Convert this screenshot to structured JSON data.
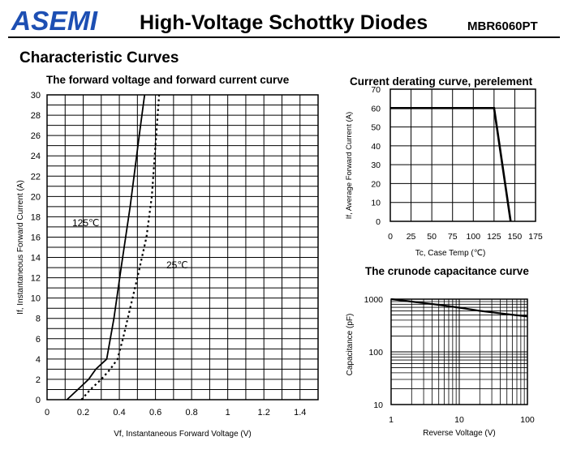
{
  "header": {
    "brand": "ASEMI",
    "title": "High-Voltage Schottky Diodes",
    "part_number": "MBR6060PT",
    "section_title": "Characteristic Curves"
  },
  "chart_data": [
    {
      "type": "line",
      "title": "The forward voltage and forward current curve",
      "xlabel": "Vf, Instantaneous Forward Voltage (V)",
      "ylabel": "If, Instantaneous Forward Current (A)",
      "xlim": [
        0,
        1.5
      ],
      "ylim": [
        0,
        30
      ],
      "x_ticks": [
        0,
        0.2,
        0.4,
        0.6,
        0.8,
        1,
        1.2,
        1.4
      ],
      "x_tick_labels": [
        "0",
        "0.2",
        "0.4",
        "0.6",
        "0.8",
        "1",
        "1.2",
        "1.4"
      ],
      "y_ticks": [
        0,
        2,
        4,
        6,
        8,
        10,
        12,
        14,
        16,
        18,
        20,
        22,
        24,
        26,
        28,
        30
      ],
      "grid": true,
      "series": [
        {
          "name": "125℃",
          "style": "solid",
          "x": [
            0.11,
            0.17,
            0.23,
            0.27,
            0.33,
            0.37,
            0.41,
            0.46,
            0.51,
            0.54
          ],
          "y": [
            0,
            1,
            2,
            3,
            4,
            8,
            13,
            19,
            26,
            30
          ]
        },
        {
          "name": "25℃",
          "style": "dotted",
          "x": [
            0.19,
            0.24,
            0.3,
            0.35,
            0.39,
            0.42,
            0.46,
            0.5,
            0.55,
            0.58,
            0.6,
            0.62
          ],
          "y": [
            0,
            1,
            2,
            3,
            4,
            6,
            9,
            12,
            16,
            20,
            25,
            30
          ]
        }
      ],
      "annotations": [
        "125℃",
        "25℃"
      ]
    },
    {
      "type": "line",
      "title": "Current derating curve, perelement",
      "xlabel": "Tc, Case Temp (℃)",
      "ylabel": "If, Average Forward Current (A)",
      "xlim": [
        0,
        175
      ],
      "ylim": [
        0,
        70
      ],
      "x_ticks": [
        0,
        25,
        50,
        75,
        100,
        125,
        150,
        175
      ],
      "y_ticks": [
        0,
        10,
        20,
        30,
        40,
        50,
        60,
        70
      ],
      "grid": true,
      "series": [
        {
          "x": [
            0,
            125,
            145
          ],
          "y": [
            60,
            60,
            0
          ]
        }
      ]
    },
    {
      "type": "line",
      "title": "The crunode capacitance curve",
      "xlabel": "Reverse Voltage (V)",
      "ylabel": "Capacitance (pF)",
      "xscale": "log",
      "yscale": "log",
      "xlim": [
        1,
        100
      ],
      "ylim": [
        10,
        1000
      ],
      "x_ticks": [
        1,
        10,
        100
      ],
      "y_ticks": [
        10,
        100,
        1000
      ],
      "grid": true,
      "series": [
        {
          "x": [
            1,
            2,
            5,
            10,
            20,
            50,
            100
          ],
          "y": [
            1000,
            900,
            780,
            690,
            600,
            520,
            470
          ]
        }
      ]
    }
  ]
}
